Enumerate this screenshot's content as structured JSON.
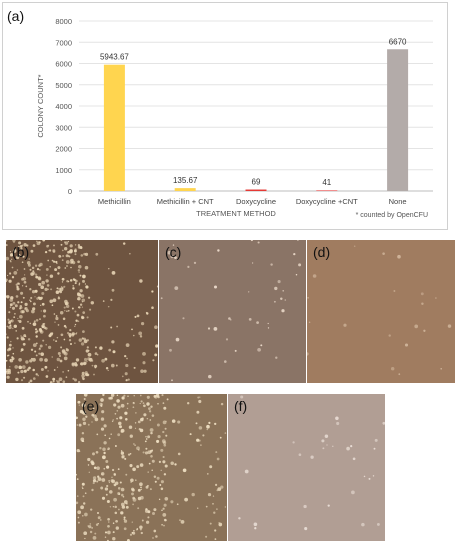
{
  "chart_panel_label": "(a)",
  "footnote": "* counted by OpenCFU",
  "chart_data": {
    "type": "bar",
    "title": "",
    "xlabel": "TREATMENT METHOD",
    "ylabel": "COLONY COUNT*",
    "ylim": [
      0,
      8000
    ],
    "yticks": [
      0,
      1000,
      2000,
      3000,
      4000,
      5000,
      6000,
      7000,
      8000
    ],
    "grid": true,
    "categories": [
      "Methicillin",
      "Methicillin + CNT",
      "Doxycycline",
      "Doxycycline +CNT",
      "None"
    ],
    "values": [
      5943.67,
      135.67,
      69,
      41,
      6670
    ],
    "data_labels": [
      "5943.67",
      "135.67",
      "69",
      "41",
      "6670"
    ],
    "colors": [
      "#FFD54F",
      "#FFD54F",
      "#E53935",
      "#EF7E7E",
      "#B3ABA9"
    ]
  },
  "photos": [
    {
      "label": "(b)",
      "bg": "#6e5440",
      "dots": "#e6d3b3"
    },
    {
      "label": "(c)",
      "bg": "#8a7466",
      "dots": "#e9d8c8"
    },
    {
      "label": "(d)",
      "bg": "#a07c60",
      "dots": "#cfb49a"
    },
    {
      "label": "(e)",
      "bg": "#8a7258",
      "dots": "#ecdcbf"
    },
    {
      "label": "(f)",
      "bg": "#b19e94",
      "dots": "#e8dcd4"
    }
  ]
}
